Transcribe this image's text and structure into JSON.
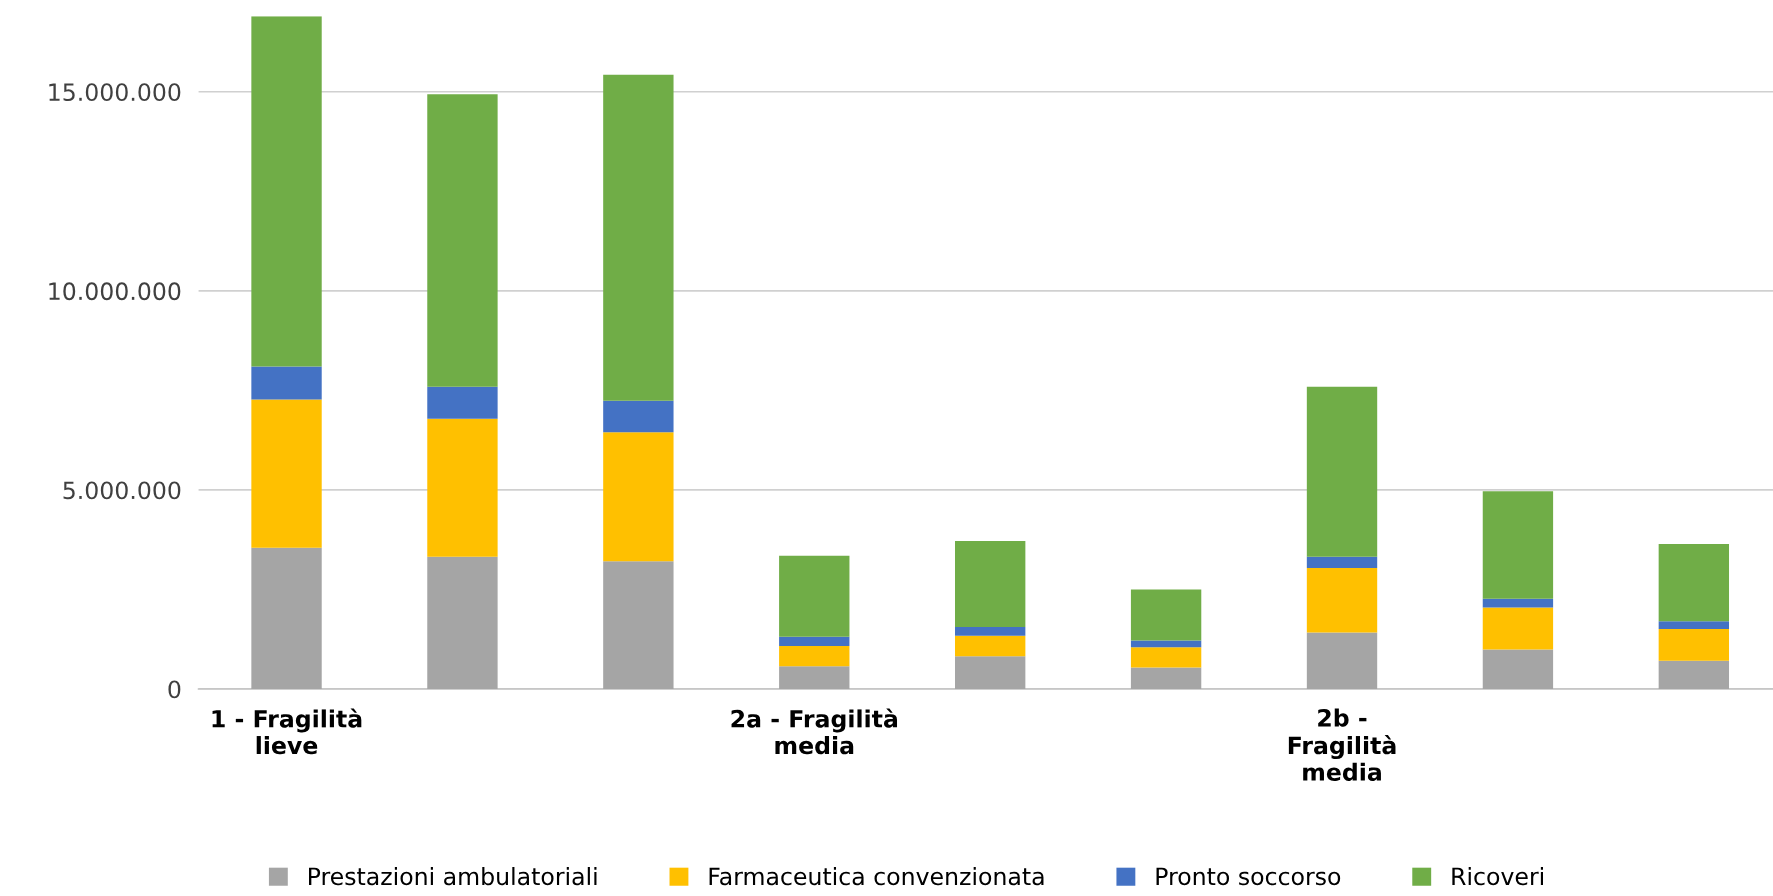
{
  "chart_data": {
    "type": "bar",
    "stacked": true,
    "categories": [
      "1 - Fragilità\nlieve",
      null,
      null,
      "2a - Fragilità\nmedia",
      null,
      null,
      "2b -\nFragilità\nmedia",
      null,
      null
    ],
    "series": [
      {
        "name": "Prestazioni ambulatoriali",
        "color": "#a5a5a5",
        "values": [
          3550000,
          3320000,
          3210000,
          570000,
          820000,
          540000,
          1420000,
          990000,
          710000
        ]
      },
      {
        "name": "Farmaceutica convenzionata",
        "color": "#ffc000",
        "values": [
          3720000,
          3470000,
          3240000,
          510000,
          520000,
          510000,
          1620000,
          1060000,
          800000
        ]
      },
      {
        "name": "Pronto soccorso",
        "color": "#4472c4",
        "values": [
          830000,
          800000,
          790000,
          230000,
          220000,
          170000,
          280000,
          220000,
          190000
        ]
      },
      {
        "name": "Ricoveri",
        "color": "#70ad47",
        "values": [
          8800000,
          7350000,
          8190000,
          2040000,
          2160000,
          1280000,
          4270000,
          2700000,
          1940000
        ]
      }
    ],
    "yticks": [
      {
        "value": 0,
        "label": "0"
      },
      {
        "value": 5000000,
        "label": "5.000.000"
      },
      {
        "value": 10000000,
        "label": "10.000.000"
      },
      {
        "value": 15000000,
        "label": "15.000.000"
      }
    ],
    "ylim": [
      0,
      16900000
    ],
    "grid": "y",
    "legend": "bottom"
  }
}
